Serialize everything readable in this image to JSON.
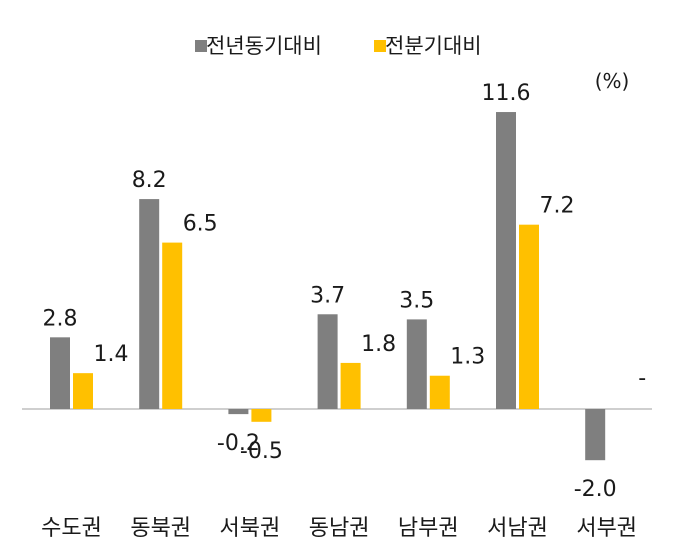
{
  "chart_data": {
    "type": "bar",
    "unit_label": "(%)",
    "categories": [
      "수도권",
      "동북권",
      "서북권",
      "동남권",
      "남부권",
      "서남권",
      "서부권"
    ],
    "series": [
      {
        "name": "전년동기대비",
        "color": "#7f7f7f",
        "values": [
          2.8,
          8.2,
          -0.2,
          3.7,
          3.5,
          11.6,
          -2.0
        ],
        "labels": [
          "2.8",
          "8.2",
          "-0.2",
          "3.7",
          "3.5",
          "11.6",
          "-2.0"
        ]
      },
      {
        "name": "전분기대비",
        "color": "#ffc000",
        "values": [
          1.4,
          6.5,
          -0.5,
          1.8,
          1.3,
          7.2,
          null
        ],
        "labels": [
          "1.4",
          "6.5",
          "-0.5",
          "1.8",
          "1.3",
          "7.2",
          "-"
        ]
      }
    ],
    "legend_position": "top-center",
    "grid": false,
    "zero_line": true
  }
}
